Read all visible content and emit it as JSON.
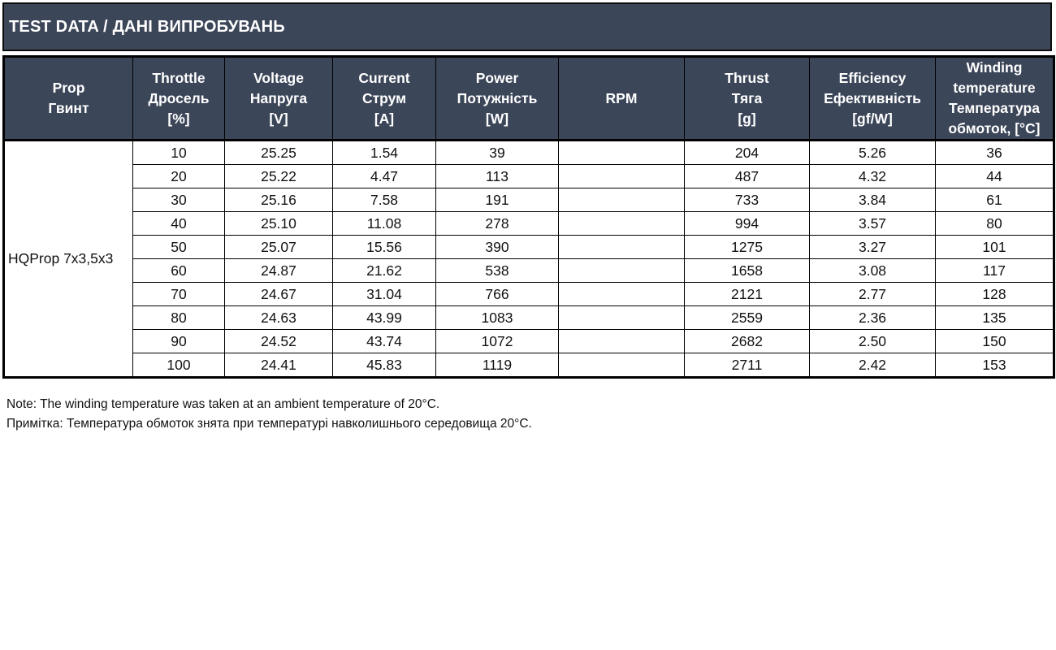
{
  "title": "TEST DATA / ДАНІ ВИПРОБУВАНЬ",
  "headers": {
    "prop": [
      "Prop",
      "Гвинт"
    ],
    "throttle": [
      "Throttle",
      "Дросель",
      "[%]"
    ],
    "voltage": [
      "Voltage",
      "Напруга",
      "[V]"
    ],
    "current": [
      "Current",
      "Струм",
      "[A]"
    ],
    "power": [
      "Power",
      "Потужність",
      "[W]"
    ],
    "rpm": [
      "RPM"
    ],
    "thrust": [
      "Thrust",
      "Тяга",
      "[g]"
    ],
    "efficiency": [
      "Efficiency",
      "Ефективність",
      "[gf/W]"
    ],
    "winding": [
      "Winding",
      "temperature",
      "Температура",
      "обмоток, [°C]"
    ]
  },
  "prop_name": "HQProp 7x3,5x3",
  "rows": [
    {
      "throttle": "10",
      "voltage": "25.25",
      "current": "1.54",
      "power": "39",
      "rpm": "",
      "thrust": "204",
      "efficiency": "5.26",
      "winding": "36"
    },
    {
      "throttle": "20",
      "voltage": "25.22",
      "current": "4.47",
      "power": "113",
      "rpm": "",
      "thrust": "487",
      "efficiency": "4.32",
      "winding": "44"
    },
    {
      "throttle": "30",
      "voltage": "25.16",
      "current": "7.58",
      "power": "191",
      "rpm": "",
      "thrust": "733",
      "efficiency": "3.84",
      "winding": "61"
    },
    {
      "throttle": "40",
      "voltage": "25.10",
      "current": "11.08",
      "power": "278",
      "rpm": "",
      "thrust": "994",
      "efficiency": "3.57",
      "winding": "80"
    },
    {
      "throttle": "50",
      "voltage": "25.07",
      "current": "15.56",
      "power": "390",
      "rpm": "",
      "thrust": "1275",
      "efficiency": "3.27",
      "winding": "101"
    },
    {
      "throttle": "60",
      "voltage": "24.87",
      "current": "21.62",
      "power": "538",
      "rpm": "",
      "thrust": "1658",
      "efficiency": "3.08",
      "winding": "117"
    },
    {
      "throttle": "70",
      "voltage": "24.67",
      "current": "31.04",
      "power": "766",
      "rpm": "",
      "thrust": "2121",
      "efficiency": "2.77",
      "winding": "128"
    },
    {
      "throttle": "80",
      "voltage": "24.63",
      "current": "43.99",
      "power": "1083",
      "rpm": "",
      "thrust": "2559",
      "efficiency": "2.36",
      "winding": "135"
    },
    {
      "throttle": "90",
      "voltage": "24.52",
      "current": "43.74",
      "power": "1072",
      "rpm": "",
      "thrust": "2682",
      "efficiency": "2.50",
      "winding": "150"
    },
    {
      "throttle": "100",
      "voltage": "24.41",
      "current": "45.83",
      "power": "1119",
      "rpm": "",
      "thrust": "2711",
      "efficiency": "2.42",
      "winding": "153"
    }
  ],
  "notes": [
    "Note: The winding temperature was taken at an ambient temperature of 20°C.",
    "Примітка: Температура обмоток знята при температурі навколишнього середовища 20°C."
  ],
  "colors": {
    "header_bg": "#3c4659",
    "header_text": "#ffffff",
    "border": "#000000"
  }
}
